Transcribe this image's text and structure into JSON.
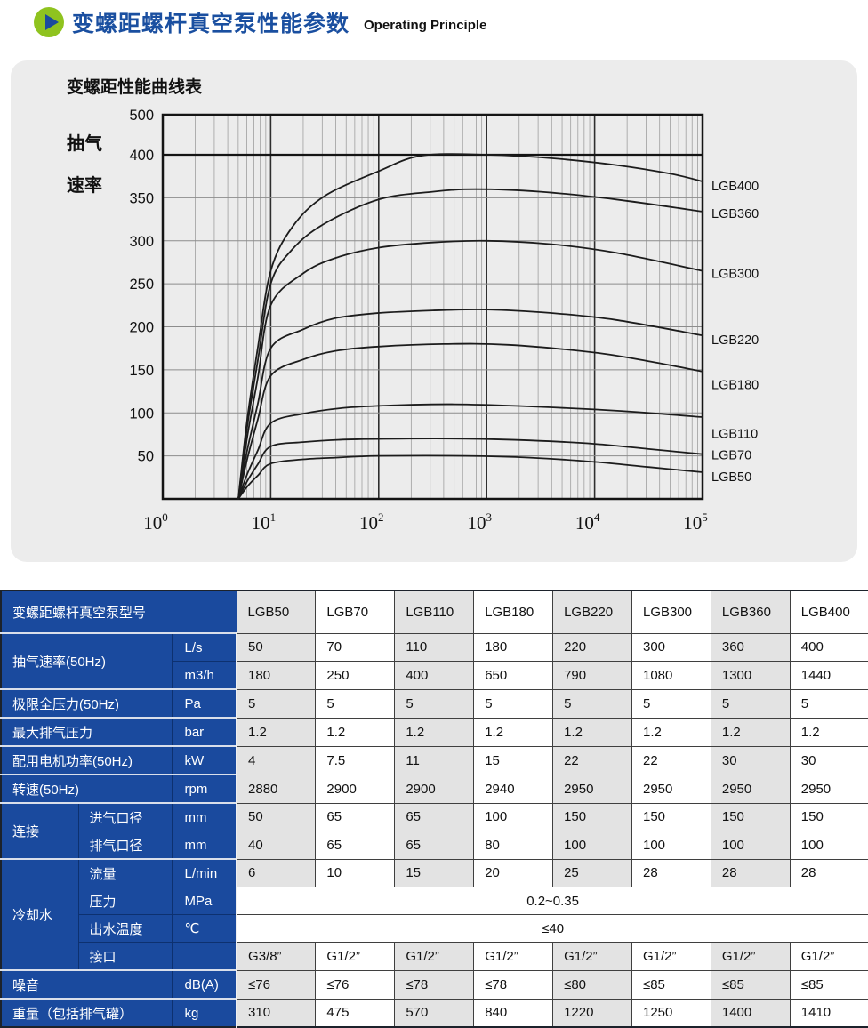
{
  "header": {
    "title_zh": "变螺距螺杆真空泵性能参数",
    "title_en": "Operating Principle",
    "icon": "play-icon"
  },
  "colors": {
    "accent_blue": "#1a4a9e",
    "accent_green": "#8fc31f",
    "title_blue": "#1a4fa0",
    "panel_gray": "#ececec",
    "cell_gray": "#e3e3e3",
    "curve_color": "#1c1c1c"
  },
  "chart_data": {
    "type": "line",
    "title": "变螺距性能曲线表",
    "ylabel_lines": [
      "抽气",
      "速率"
    ],
    "xscale": "log",
    "x_tick_base": "10",
    "x_tick_exponents": [
      0,
      1,
      2,
      3,
      4,
      5
    ],
    "y_ticks": [
      500,
      400,
      350,
      300,
      250,
      200,
      150,
      100,
      50
    ],
    "ylim": [
      0,
      500
    ],
    "grid": true,
    "legend_position": "right-outside",
    "series": [
      {
        "name": "LGB400",
        "label_v": 364,
        "points": [
          [
            0.7,
            0
          ],
          [
            0.78,
            90
          ],
          [
            0.88,
            175
          ],
          [
            1.0,
            265
          ],
          [
            1.2,
            316
          ],
          [
            1.5,
            352
          ],
          [
            2.0,
            381
          ],
          [
            2.4,
            399
          ],
          [
            3.0,
            400
          ],
          [
            3.6,
            396
          ],
          [
            4.2,
            388
          ],
          [
            4.7,
            378
          ],
          [
            5.0,
            369
          ]
        ]
      },
      {
        "name": "LGB360",
        "label_v": 332,
        "points": [
          [
            0.7,
            0
          ],
          [
            0.78,
            82
          ],
          [
            0.88,
            160
          ],
          [
            1.0,
            250
          ],
          [
            1.2,
            290
          ],
          [
            1.5,
            320
          ],
          [
            2.0,
            348
          ],
          [
            2.5,
            357
          ],
          [
            2.9,
            360
          ],
          [
            3.5,
            357
          ],
          [
            4.2,
            348
          ],
          [
            5.0,
            334
          ]
        ]
      },
      {
        "name": "LGB300",
        "label_v": 262,
        "points": [
          [
            0.7,
            0
          ],
          [
            0.78,
            70
          ],
          [
            0.88,
            140
          ],
          [
            1.0,
            225
          ],
          [
            1.3,
            262
          ],
          [
            1.6,
            280
          ],
          [
            2.0,
            292
          ],
          [
            2.5,
            298
          ],
          [
            3.0,
            300
          ],
          [
            3.6,
            296
          ],
          [
            4.2,
            286
          ],
          [
            5.0,
            265
          ]
        ]
      },
      {
        "name": "LGB220",
        "label_v": 185,
        "points": [
          [
            0.7,
            0
          ],
          [
            0.78,
            55
          ],
          [
            0.88,
            110
          ],
          [
            1.0,
            175
          ],
          [
            1.3,
            197
          ],
          [
            1.6,
            210
          ],
          [
            2.0,
            216
          ],
          [
            2.5,
            219
          ],
          [
            3.0,
            220
          ],
          [
            3.6,
            216
          ],
          [
            4.2,
            208
          ],
          [
            5.0,
            190
          ]
        ]
      },
      {
        "name": "LGB180",
        "label_v": 133,
        "points": [
          [
            0.7,
            0
          ],
          [
            0.78,
            45
          ],
          [
            0.88,
            92
          ],
          [
            1.0,
            143
          ],
          [
            1.3,
            162
          ],
          [
            1.6,
            172
          ],
          [
            2.0,
            177
          ],
          [
            2.6,
            180
          ],
          [
            3.2,
            179
          ],
          [
            4.0,
            170
          ],
          [
            4.5,
            160
          ],
          [
            5.0,
            148
          ]
        ]
      },
      {
        "name": "LGB110",
        "label_v": 76,
        "points": [
          [
            0.7,
            0
          ],
          [
            0.78,
            28
          ],
          [
            0.88,
            56
          ],
          [
            1.0,
            88
          ],
          [
            1.3,
            99
          ],
          [
            1.7,
            106
          ],
          [
            2.2,
            109
          ],
          [
            2.7,
            110
          ],
          [
            3.3,
            108
          ],
          [
            4.0,
            104
          ],
          [
            4.5,
            100
          ],
          [
            5.0,
            95
          ]
        ]
      },
      {
        "name": "LGB70",
        "label_v": 51,
        "points": [
          [
            0.7,
            0
          ],
          [
            0.78,
            20
          ],
          [
            0.88,
            40
          ],
          [
            1.0,
            61
          ],
          [
            1.3,
            66
          ],
          [
            1.7,
            69
          ],
          [
            2.2,
            70
          ],
          [
            2.8,
            70
          ],
          [
            3.4,
            68
          ],
          [
            4.0,
            64
          ],
          [
            4.5,
            58
          ],
          [
            5.0,
            52
          ]
        ]
      },
      {
        "name": "LGB50",
        "label_v": 26,
        "points": [
          [
            0.7,
            0
          ],
          [
            0.78,
            14
          ],
          [
            0.88,
            27
          ],
          [
            1.0,
            41
          ],
          [
            1.3,
            46
          ],
          [
            1.6,
            48
          ],
          [
            2.0,
            50
          ],
          [
            2.8,
            50
          ],
          [
            3.4,
            48
          ],
          [
            4.0,
            43
          ],
          [
            4.5,
            37
          ],
          [
            5.0,
            31
          ]
        ]
      }
    ]
  },
  "table": {
    "corner_label": "变螺距螺杆真空泵型号",
    "models": [
      "LGB50",
      "LGB70",
      "LGB110",
      "LGB180",
      "LGB220",
      "LGB300",
      "LGB360",
      "LGB400"
    ],
    "rows": [
      {
        "label": "抽气速率(50Hz)",
        "label_colspan": 2,
        "label_rowspan": 2,
        "unit": "L/s",
        "group_start": true,
        "values": [
          "50",
          "70",
          "110",
          "180",
          "220",
          "300",
          "360",
          "400"
        ]
      },
      {
        "unit": "m3/h",
        "values": [
          "180",
          "250",
          "400",
          "650",
          "790",
          "1080",
          "1300",
          "1440"
        ]
      },
      {
        "label": "极限全压力(50Hz)",
        "label_colspan": 2,
        "unit": "Pa",
        "group_start": true,
        "values": [
          "5",
          "5",
          "5",
          "5",
          "5",
          "5",
          "5",
          "5"
        ]
      },
      {
        "label": "最大排气压力",
        "label_colspan": 2,
        "unit": "bar",
        "group_start": true,
        "values": [
          "1.2",
          "1.2",
          "1.2",
          "1.2",
          "1.2",
          "1.2",
          "1.2",
          "1.2"
        ]
      },
      {
        "label": "配用电机功率(50Hz)",
        "label_colspan": 2,
        "unit": "kW",
        "group_start": true,
        "values": [
          "4",
          "7.5",
          "11",
          "15",
          "22",
          "22",
          "30",
          "30"
        ]
      },
      {
        "label": "转速(50Hz)",
        "label_colspan": 2,
        "unit": "rpm",
        "group_start": true,
        "values": [
          "2880",
          "2900",
          "2900",
          "2940",
          "2950",
          "2950",
          "2950",
          "2950"
        ]
      },
      {
        "group": "连接",
        "group_rowspan": 2,
        "label": "进气口径",
        "unit": "mm",
        "group_start": true,
        "values": [
          "50",
          "65",
          "65",
          "100",
          "150",
          "150",
          "150",
          "150"
        ]
      },
      {
        "label": "排气口径",
        "unit": "mm",
        "values": [
          "40",
          "65",
          "65",
          "80",
          "100",
          "100",
          "100",
          "100"
        ]
      },
      {
        "group": "冷却水",
        "group_rowspan": 4,
        "label": "流量",
        "unit": "L/min",
        "group_start": true,
        "values": [
          "6",
          "10",
          "15",
          "20",
          "25",
          "28",
          "28",
          "28"
        ]
      },
      {
        "label": "压力",
        "unit": "MPa",
        "merged": "0.2~0.35"
      },
      {
        "label": "出水温度",
        "unit": "℃",
        "merged": "≤40"
      },
      {
        "label": "接口",
        "unit": "",
        "values": [
          "G3/8”",
          "G1/2”",
          "G1/2”",
          "G1/2”",
          "G1/2”",
          "G1/2”",
          "G1/2”",
          "G1/2”"
        ]
      },
      {
        "label": "噪音",
        "label_colspan": 2,
        "unit": "dB(A)",
        "group_start": true,
        "values": [
          "≤76",
          "≤76",
          "≤78",
          "≤78",
          "≤80",
          "≤85",
          "≤85",
          "≤85"
        ]
      },
      {
        "label": "重量（包括排气罐）",
        "label_colspan": 2,
        "unit": "kg",
        "group_start": true,
        "values": [
          "310",
          "475",
          "570",
          "840",
          "1220",
          "1250",
          "1400",
          "1410"
        ]
      }
    ]
  }
}
